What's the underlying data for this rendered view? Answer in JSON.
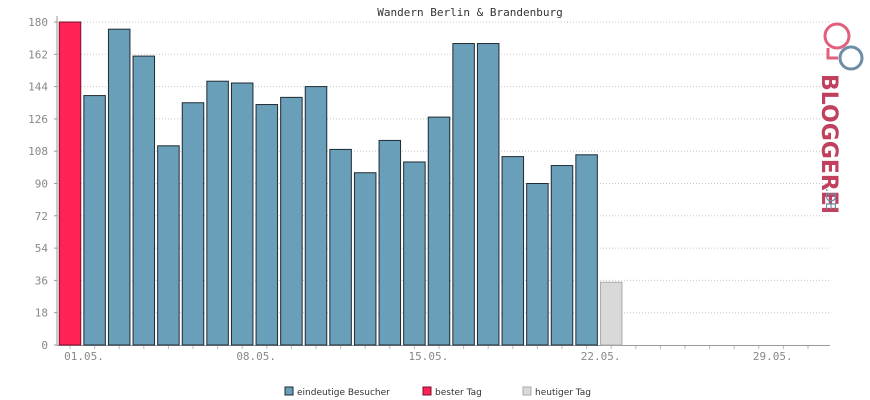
{
  "chart_data": {
    "type": "bar",
    "title": "Wandern Berlin & Brandenburg",
    "ylim": [
      0,
      180
    ],
    "y_ticks": [
      0,
      18,
      36,
      54,
      72,
      90,
      108,
      126,
      144,
      162,
      180
    ],
    "x_tick_labels": [
      "01.05.",
      "08.05.",
      "15.05.",
      "22.05.",
      "29.05."
    ],
    "grid": true,
    "legend_position": "bottom",
    "colors": {
      "eindeutige_besucher": "#6a9fb9",
      "bester_tag": "#ff2255",
      "heutiger_tag": "#d9d9d9"
    },
    "series": [
      {
        "name": "eindeutige Besucher",
        "x": [
          "02.05.",
          "03.05.",
          "04.05.",
          "05.05.",
          "06.05.",
          "07.05.",
          "08.05.",
          "09.05.",
          "10.05.",
          "11.05.",
          "12.05.",
          "13.05.",
          "14.05.",
          "15.05.",
          "16.05.",
          "17.05.",
          "18.05.",
          "19.05.",
          "20.05.",
          "21.05.",
          "22.05."
        ],
        "values": [
          139,
          176,
          161,
          111,
          135,
          147,
          146,
          134,
          138,
          144,
          109,
          96,
          114,
          102,
          127,
          168,
          168,
          105,
          90,
          100,
          106
        ]
      },
      {
        "name": "bester Tag",
        "x": [
          "01.05."
        ],
        "values": [
          180
        ]
      },
      {
        "name": "heutiger Tag",
        "x": [
          "23.05."
        ],
        "values": [
          35
        ]
      }
    ]
  },
  "logo": {
    "brand": "BLOGGEREI",
    "suffix": ".DE"
  }
}
